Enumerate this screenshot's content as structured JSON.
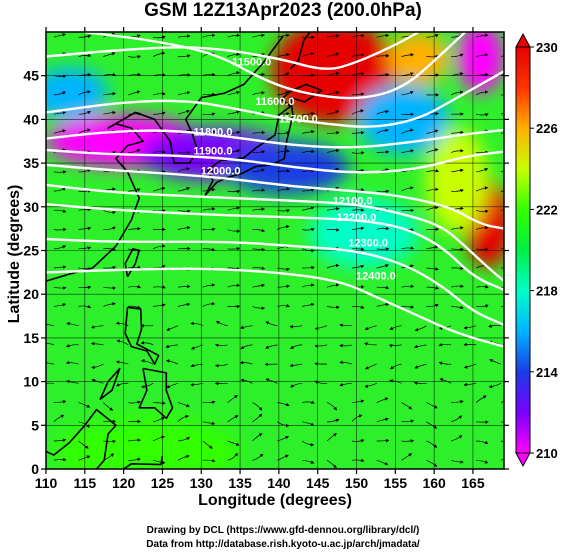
{
  "title": "GSM 12Z13Apr2023 (200.0hPa)",
  "xlabel": "Longitude (degrees)",
  "ylabel": "Latitude (degrees)",
  "credits": {
    "line1": "Drawing by DCL (https://www.gfd-dennou.org/library/dcl/)",
    "line2": "Data from http://database.rish.kyoto-u.ac.jp/arch/jmadata/"
  },
  "chart_data": {
    "type": "heatmap",
    "title": "GSM 12Z13Apr2023 (200.0hPa)",
    "xlabel": "Longitude (degrees)",
    "ylabel": "Latitude (degrees)",
    "xlim": [
      110,
      169
    ],
    "ylim": [
      0,
      50
    ],
    "x_ticks": [
      "110",
      "115",
      "120",
      "125",
      "130",
      "135",
      "140",
      "145",
      "150",
      "155",
      "160",
      "165"
    ],
    "y_ticks": [
      "0",
      "5",
      "10",
      "15",
      "20",
      "25",
      "30",
      "35",
      "40",
      "45"
    ],
    "colorbar": {
      "range": [
        210,
        230
      ],
      "ticks": [
        "230",
        "226",
        "222",
        "218",
        "214",
        "210"
      ],
      "colors": [
        "#ff00ff",
        "#7a00ff",
        "#1a3ce6",
        "#00b4ff",
        "#00ffc8",
        "#00ee44",
        "#33ff00",
        "#c8ff00",
        "#ffb000",
        "#ff3300",
        "#e60000"
      ]
    },
    "contour_labels": [
      {
        "text": "11500.0",
        "lon": 136.5,
        "lat": 46.5
      },
      {
        "text": "11600.0",
        "lon": 139.5,
        "lat": 42.0
      },
      {
        "text": "11700.0",
        "lon": 142.5,
        "lat": 40.0
      },
      {
        "text": "11800.0",
        "lon": 131.5,
        "lat": 38.5
      },
      {
        "text": "11900.0",
        "lon": 131.5,
        "lat": 36.3
      },
      {
        "text": "12000.0",
        "lon": 132.5,
        "lat": 34.0
      },
      {
        "text": "12100.0",
        "lon": 149.5,
        "lat": 30.6
      },
      {
        "text": "12200.0",
        "lon": 150.0,
        "lat": 28.7
      },
      {
        "text": "12300.0",
        "lon": 151.5,
        "lat": 25.8
      },
      {
        "text": "12400.0",
        "lon": 152.5,
        "lat": 22.0
      }
    ],
    "contours": [
      {
        "level": "11500.0",
        "points": [
          [
            110,
            47.2
          ],
          [
            120,
            48.0
          ],
          [
            130,
            48.4
          ],
          [
            140,
            47.0
          ],
          [
            146,
            45.5
          ],
          [
            150,
            46.5
          ],
          [
            155,
            48.5
          ],
          [
            158,
            50
          ]
        ]
      },
      {
        "level": "11600.0",
        "points": [
          [
            115,
            50
          ],
          [
            124,
            49.0
          ],
          [
            132,
            47.5
          ],
          [
            138,
            44.5
          ],
          [
            143,
            43.0
          ],
          [
            150,
            42.2
          ],
          [
            156,
            43.5
          ],
          [
            161,
            47.5
          ],
          [
            164,
            50
          ]
        ]
      },
      {
        "level": "11700.0",
        "points": [
          [
            110,
            40.8
          ],
          [
            120,
            42.0
          ],
          [
            128,
            42.2
          ],
          [
            134,
            41.3
          ],
          [
            140,
            40.2
          ],
          [
            146,
            39.5
          ],
          [
            152,
            39.0
          ],
          [
            158,
            40.0
          ],
          [
            163,
            42.5
          ],
          [
            169,
            45.5
          ]
        ]
      },
      {
        "level": "11800.0",
        "points": [
          [
            110,
            37.8
          ],
          [
            118,
            38.6
          ],
          [
            126,
            38.8
          ],
          [
            134,
            38.0
          ],
          [
            142,
            37.0
          ],
          [
            150,
            36.7
          ],
          [
            158,
            37.5
          ],
          [
            164,
            38.3
          ],
          [
            169,
            38.8
          ]
        ]
      },
      {
        "level": "11900.0",
        "points": [
          [
            110,
            36.5
          ],
          [
            118,
            36.0
          ],
          [
            126,
            35.9
          ],
          [
            134,
            35.5
          ],
          [
            142,
            34.5
          ],
          [
            150,
            33.8
          ],
          [
            158,
            34.3
          ],
          [
            164,
            35.8
          ],
          [
            169,
            36.3
          ]
        ]
      },
      {
        "level": "12000.0",
        "points": [
          [
            110,
            34.8
          ],
          [
            118,
            34.2
          ],
          [
            126,
            33.8
          ],
          [
            134,
            33.2
          ],
          [
            142,
            32.3
          ],
          [
            150,
            31.8
          ],
          [
            156,
            31.2
          ],
          [
            162,
            30.0
          ],
          [
            166,
            28.0
          ],
          [
            169,
            27.5
          ]
        ]
      },
      {
        "level": "12100.0",
        "points": [
          [
            110,
            32.5
          ],
          [
            118,
            31.7
          ],
          [
            126,
            31.3
          ],
          [
            134,
            31.0
          ],
          [
            142,
            30.7
          ],
          [
            150,
            30.3
          ],
          [
            156,
            29.2
          ],
          [
            161,
            27.8
          ],
          [
            164,
            25.5
          ],
          [
            167,
            23.0
          ],
          [
            169,
            21.5
          ]
        ]
      },
      {
        "level": "12200.0",
        "points": [
          [
            110,
            30.3
          ],
          [
            118,
            29.7
          ],
          [
            126,
            29.3
          ],
          [
            134,
            29.0
          ],
          [
            142,
            28.8
          ],
          [
            150,
            28.5
          ],
          [
            156,
            27.7
          ],
          [
            161,
            25.5
          ],
          [
            165,
            22.0
          ],
          [
            169,
            20.5
          ]
        ]
      },
      {
        "level": "12300.0",
        "points": [
          [
            110,
            26.3
          ],
          [
            118,
            26.0
          ],
          [
            126,
            26.0
          ],
          [
            134,
            26.0
          ],
          [
            142,
            25.5
          ],
          [
            150,
            25.0
          ],
          [
            156,
            23.5
          ],
          [
            161,
            21.0
          ],
          [
            165,
            18.0
          ],
          [
            169,
            16.5
          ]
        ]
      },
      {
        "level": "12400.0",
        "points": [
          [
            110,
            22.5
          ],
          [
            120,
            22.8
          ],
          [
            130,
            23.0
          ],
          [
            140,
            22.5
          ],
          [
            148,
            21.5
          ],
          [
            153,
            19.5
          ],
          [
            158,
            17.5
          ],
          [
            163,
            15.5
          ],
          [
            169,
            14.0
          ]
        ]
      }
    ],
    "temperature_blobs": [
      {
        "lon": 147,
        "lat": 45.5,
        "value": 229.5,
        "rx": 8,
        "ry": 6
      },
      {
        "lon": 158,
        "lat": 47,
        "value": 226.5,
        "rx": 4,
        "ry": 3
      },
      {
        "lon": 166,
        "lat": 47,
        "value": 210.5,
        "rx": 3,
        "ry": 4
      },
      {
        "lon": 120,
        "lat": 37.5,
        "value": 210.5,
        "rx": 10,
        "ry": 3
      },
      {
        "lon": 132,
        "lat": 36,
        "value": 211.0,
        "rx": 10,
        "ry": 3
      },
      {
        "lon": 141,
        "lat": 34.5,
        "value": 213.0,
        "rx": 8,
        "ry": 3
      },
      {
        "lon": 113,
        "lat": 43,
        "value": 216.0,
        "rx": 5,
        "ry": 3
      },
      {
        "lon": 156,
        "lat": 40,
        "value": 216.0,
        "rx": 6,
        "ry": 4
      },
      {
        "lon": 151,
        "lat": 27,
        "value": 217.5,
        "rx": 7,
        "ry": 4
      },
      {
        "lon": 167,
        "lat": 28,
        "value": 229.0,
        "rx": 3,
        "ry": 5
      },
      {
        "lon": 163,
        "lat": 33,
        "value": 224.5,
        "rx": 4,
        "ry": 6
      },
      {
        "lon": 123,
        "lat": 2,
        "value": 221.0,
        "rx": 12,
        "ry": 4
      }
    ]
  }
}
